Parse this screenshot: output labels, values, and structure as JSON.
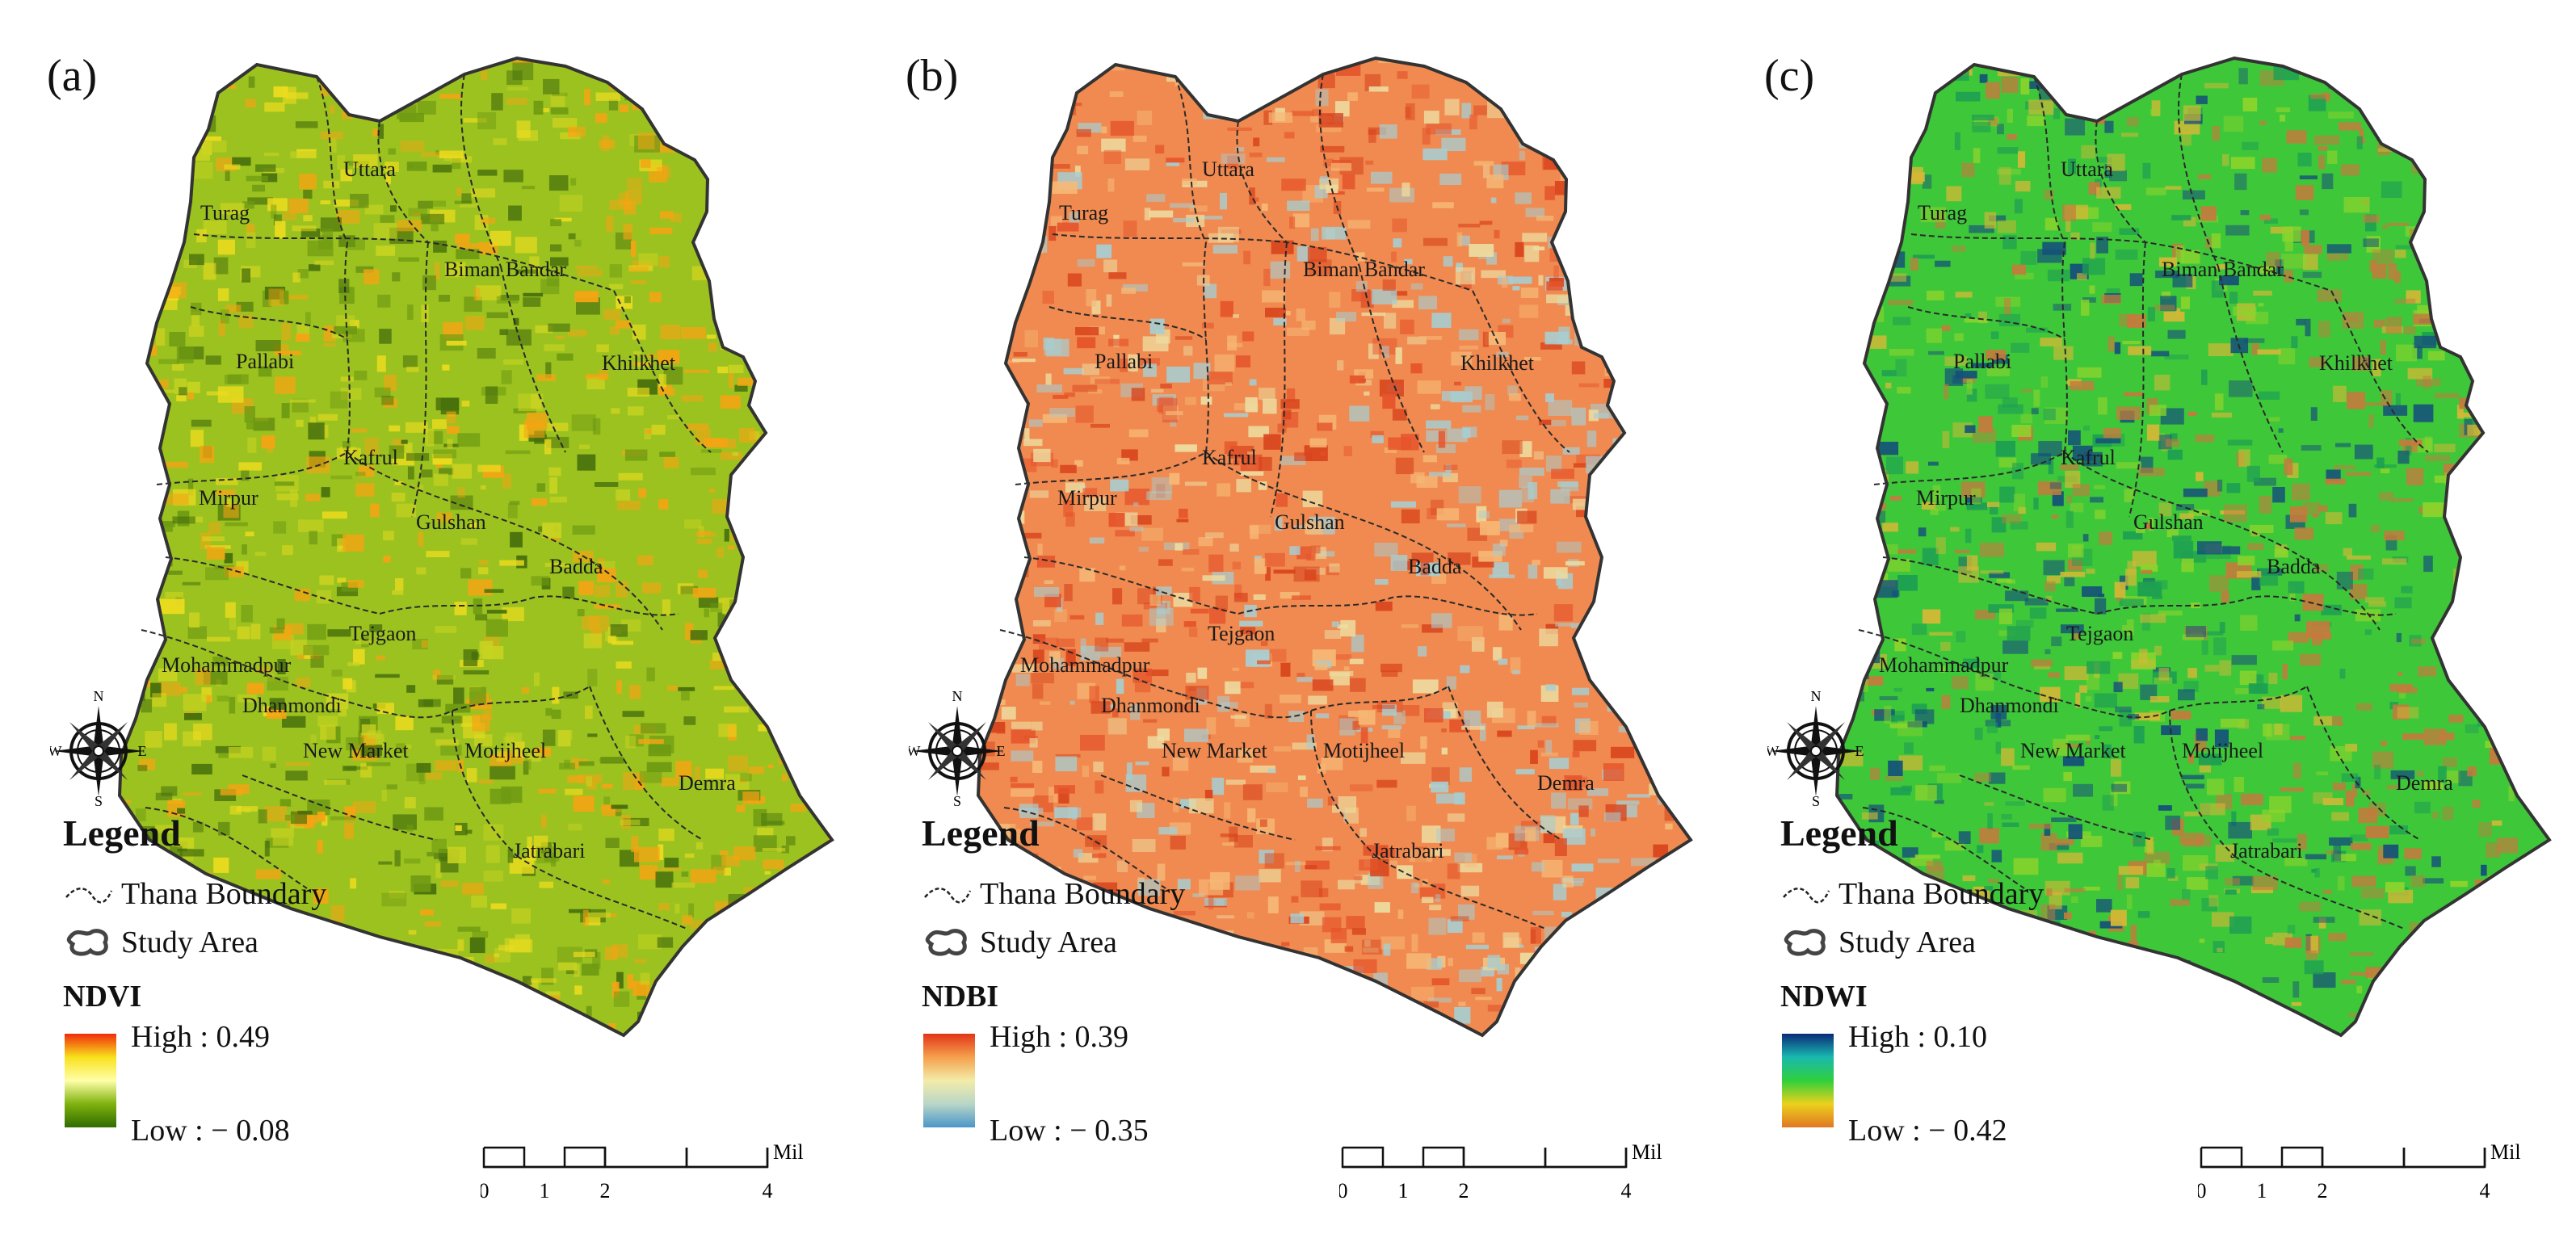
{
  "panels": [
    {
      "label": "(a)",
      "index": "NDVI",
      "high": "High : 0.49",
      "low": "Low : − 0.08",
      "ramp_colors": [
        "#f02c0a",
        "#f8e11c",
        "#ffffa8",
        "#7fb20f",
        "#2f6b00"
      ],
      "base_color": "#9cc21f",
      "texture_colors": [
        "#6e9a12",
        "#c8d321",
        "#eddc1f",
        "#f5a413",
        "#466f0c"
      ]
    },
    {
      "label": "(b)",
      "index": "NDBI",
      "high": "High : 0.39",
      "low": "Low : − 0.35",
      "ramp_colors": [
        "#e23518",
        "#f5a04c",
        "#f3eca9",
        "#b8d6c7",
        "#4a96c8"
      ],
      "base_color": "#f08a50",
      "texture_colors": [
        "#e5542b",
        "#f6b876",
        "#eddca0",
        "#a8cdd0",
        "#d8441d"
      ]
    },
    {
      "label": "(c)",
      "index": "NDWI",
      "high": "High : 0.10",
      "low": "Low : − 0.42",
      "ramp_colors": [
        "#0a2a78",
        "#19b8b0",
        "#2fd03c",
        "#ecd11c",
        "#e07624"
      ],
      "base_color": "#3fc73a",
      "texture_colors": [
        "#1d9f52",
        "#8cd42c",
        "#d4b836",
        "#c57a3d",
        "#14507a"
      ]
    }
  ],
  "legend": {
    "title": "Legend",
    "thana_boundary": "Thana Boundary",
    "study_area": "Study Area"
  },
  "compass": {
    "n": "N",
    "s": "S",
    "e": "E",
    "w": "W"
  },
  "scale_bar": {
    "ticks": [
      "0",
      "1",
      "2",
      "4"
    ],
    "unit": "Miles"
  },
  "thanas": {
    "uttara": "Uttara",
    "turag": "Turag",
    "biman_bandar": "Biman Bandar",
    "khilkhet": "Khilkhet",
    "pallabi": "Pallabi",
    "kafrul": "Kafrul",
    "mirpur": "Mirpur",
    "gulshan": "Gulshan",
    "badda": "Badda",
    "tejgaon": "Tejgaon",
    "mohammadpur": "Mohammadpur",
    "dhanmondi": "Dhanmondi",
    "new_market": "New Market",
    "motijheel": "Motijheel",
    "demra": "Demra",
    "jatrabari": "Jatrabari"
  }
}
